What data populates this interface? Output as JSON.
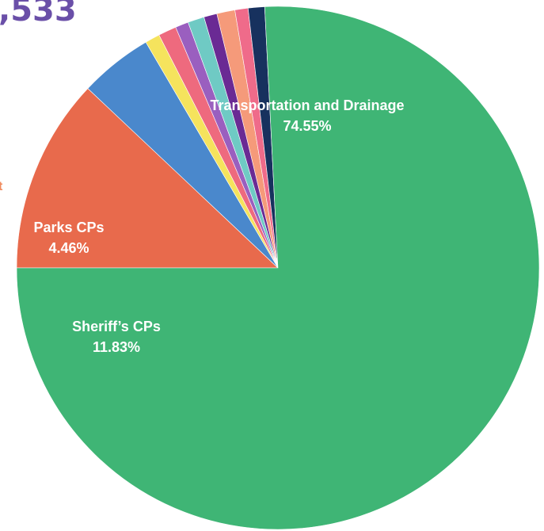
{
  "title": ",533",
  "colors": {
    "title": "#6a4fa8",
    "cut_label": "#f08a5d"
  },
  "cut_label": "t",
  "chart_data": {
    "type": "pie",
    "start_angle_deg": 180,
    "direction": "clockwise",
    "slices": [
      {
        "name": "Sheriff's CPs",
        "display_lines": [
          "Sheriff’s CPs",
          "11.83%"
        ],
        "value": 11.83,
        "color": "#e86a4c"
      },
      {
        "name": "Parks CPs",
        "display_lines": [
          "Parks CPs",
          "4.46%"
        ],
        "value": 4.46,
        "color": "#4a88cc"
      },
      {
        "name": "",
        "value": 0.9,
        "color": "#f5e35d"
      },
      {
        "name": "",
        "value": 1.1,
        "color": "#ee6a7e"
      },
      {
        "name": "",
        "value": 0.8,
        "color": "#9a5fbf"
      },
      {
        "name": "",
        "value": 1.0,
        "color": "#6fcac4"
      },
      {
        "name": "",
        "value": 0.8,
        "color": "#6a2a94"
      },
      {
        "name": "",
        "value": 1.1,
        "color": "#f59a7a"
      },
      {
        "name": "",
        "value": 0.8,
        "color": "#ef6b8a"
      },
      {
        "name": "",
        "value": 1.0,
        "color": "#17315e"
      },
      {
        "name": "Transportation and Drainage",
        "display_lines": [
          "Transportation and Drainage",
          "74.55%"
        ],
        "value": 74.55,
        "color": "#3fb575"
      }
    ]
  }
}
